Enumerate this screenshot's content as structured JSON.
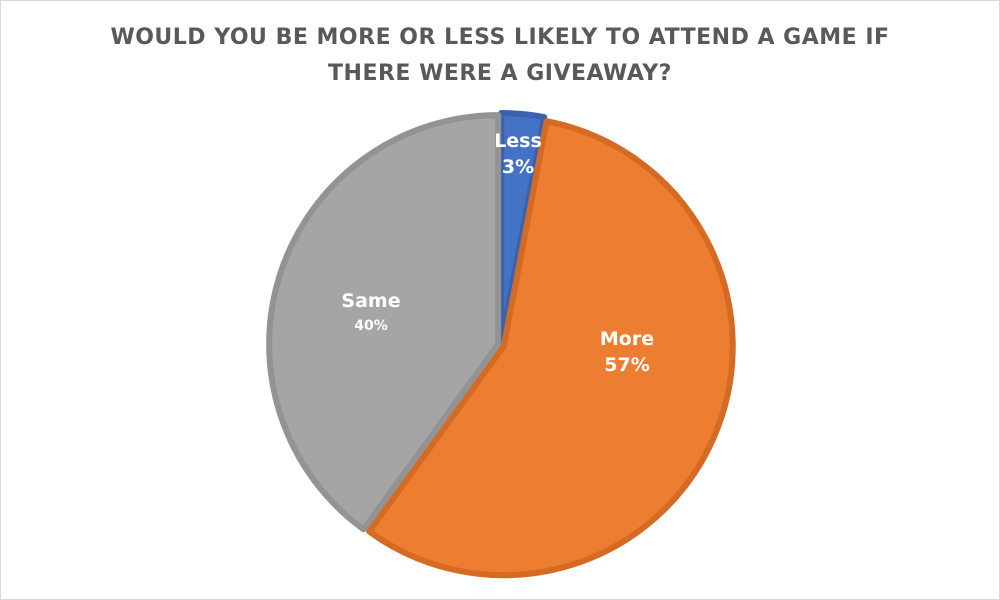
{
  "chart_data": {
    "type": "pie",
    "title": "WOULD YOU BE MORE OR LESS LIKELY TO ATTEND A GAME IF THERE WERE A GIVEAWAY?",
    "title_lines": [
      "WOULD YOU BE MORE OR LESS LIKELY TO ATTEND A GAME IF",
      "THERE WERE A GIVEAWAY?"
    ],
    "slices": [
      {
        "label": "Less",
        "value": 3,
        "pct_label": "3%",
        "color": "#4472C4",
        "edge": "#3B63AD"
      },
      {
        "label": "More",
        "value": 57,
        "pct_label": "57%",
        "color": "#ED7D31",
        "edge": "#D46B24"
      },
      {
        "label": "Same",
        "value": 40,
        "pct_label": "40%",
        "color": "#A5A5A5",
        "edge": "#939393"
      }
    ],
    "start_angle": "top",
    "direction": "clockwise",
    "legend": "none"
  }
}
